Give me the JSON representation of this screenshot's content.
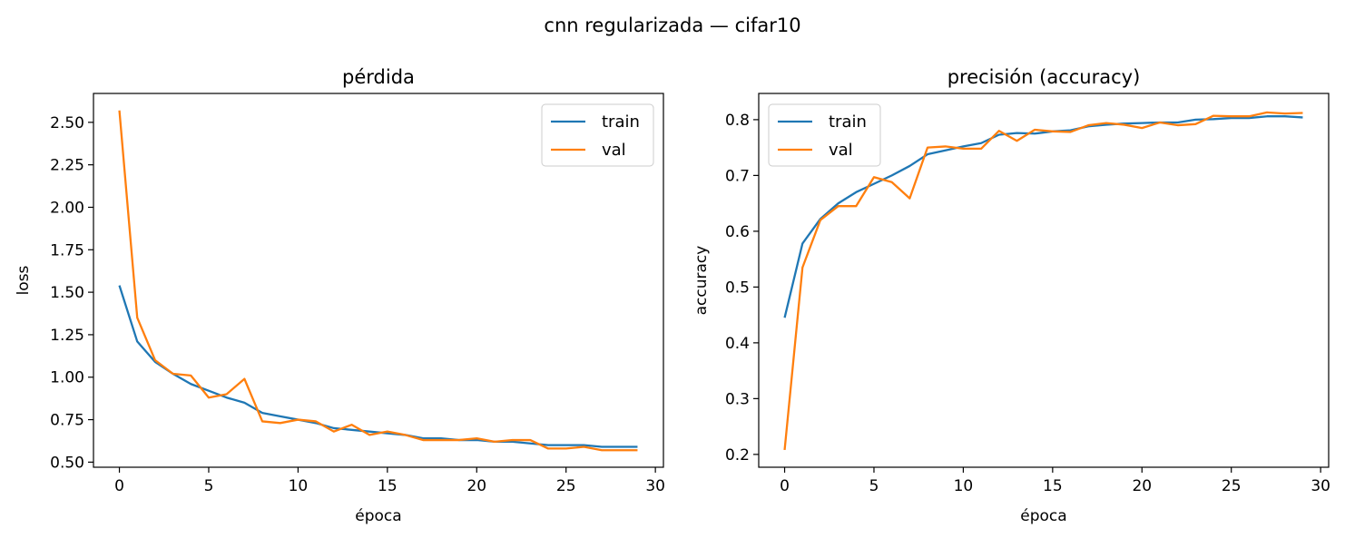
{
  "figure": {
    "suptitle": "cnn regularizada — cifar10"
  },
  "colors": {
    "train": "#1f77b4",
    "val": "#ff7f0e"
  },
  "chart_data": [
    {
      "type": "line",
      "title": "pérdida",
      "xlabel": "época",
      "ylabel": "loss",
      "xlim": [
        -1.45,
        30.45
      ],
      "ylim": [
        0.47,
        2.67
      ],
      "xticks": [
        0,
        5,
        10,
        15,
        20,
        25,
        30
      ],
      "yticks": [
        0.5,
        0.75,
        1.0,
        1.25,
        1.5,
        1.75,
        2.0,
        2.25,
        2.5
      ],
      "ytick_labels": [
        "0.50",
        "0.75",
        "1.00",
        "1.25",
        "1.50",
        "1.75",
        "2.00",
        "2.25",
        "2.50"
      ],
      "legend_position": "upper right",
      "grid": false,
      "x": [
        0,
        1,
        2,
        3,
        4,
        5,
        6,
        7,
        8,
        9,
        10,
        11,
        12,
        13,
        14,
        15,
        16,
        17,
        18,
        19,
        20,
        21,
        22,
        23,
        24,
        25,
        26,
        27,
        28,
        29
      ],
      "series": [
        {
          "name": "train",
          "values": [
            1.54,
            1.21,
            1.09,
            1.02,
            0.96,
            0.92,
            0.88,
            0.85,
            0.79,
            0.77,
            0.75,
            0.73,
            0.7,
            0.69,
            0.68,
            0.67,
            0.66,
            0.64,
            0.64,
            0.63,
            0.63,
            0.62,
            0.62,
            0.61,
            0.6,
            0.6,
            0.6,
            0.59,
            0.59,
            0.59
          ]
        },
        {
          "name": "val",
          "values": [
            2.57,
            1.35,
            1.1,
            1.02,
            1.01,
            0.88,
            0.9,
            0.99,
            0.74,
            0.73,
            0.75,
            0.74,
            0.68,
            0.72,
            0.66,
            0.68,
            0.66,
            0.63,
            0.63,
            0.63,
            0.64,
            0.62,
            0.63,
            0.63,
            0.58,
            0.58,
            0.59,
            0.57,
            0.57,
            0.57
          ]
        }
      ]
    },
    {
      "type": "line",
      "title": "precisión (accuracy)",
      "xlabel": "época",
      "ylabel": "accuracy",
      "xlim": [
        -1.45,
        30.45
      ],
      "ylim": [
        0.177,
        0.847
      ],
      "xticks": [
        0,
        5,
        10,
        15,
        20,
        25,
        30
      ],
      "yticks": [
        0.2,
        0.3,
        0.4,
        0.5,
        0.6,
        0.7,
        0.8
      ],
      "ytick_labels": [
        "0.2",
        "0.3",
        "0.4",
        "0.5",
        "0.6",
        "0.7",
        "0.8"
      ],
      "legend_position": "upper left",
      "grid": false,
      "x": [
        0,
        1,
        2,
        3,
        4,
        5,
        6,
        7,
        8,
        9,
        10,
        11,
        12,
        13,
        14,
        15,
        16,
        17,
        18,
        19,
        20,
        21,
        22,
        23,
        24,
        25,
        26,
        27,
        28,
        29
      ],
      "series": [
        {
          "name": "train",
          "values": [
            0.445,
            0.578,
            0.622,
            0.65,
            0.67,
            0.685,
            0.7,
            0.717,
            0.738,
            0.745,
            0.752,
            0.758,
            0.773,
            0.776,
            0.775,
            0.779,
            0.781,
            0.788,
            0.791,
            0.793,
            0.794,
            0.795,
            0.795,
            0.8,
            0.801,
            0.803,
            0.803,
            0.806,
            0.806,
            0.804
          ]
        },
        {
          "name": "val",
          "values": [
            0.208,
            0.535,
            0.62,
            0.645,
            0.645,
            0.697,
            0.688,
            0.659,
            0.75,
            0.752,
            0.748,
            0.748,
            0.78,
            0.762,
            0.782,
            0.779,
            0.778,
            0.79,
            0.794,
            0.791,
            0.785,
            0.795,
            0.79,
            0.792,
            0.807,
            0.806,
            0.806,
            0.813,
            0.811,
            0.812
          ]
        }
      ]
    }
  ]
}
